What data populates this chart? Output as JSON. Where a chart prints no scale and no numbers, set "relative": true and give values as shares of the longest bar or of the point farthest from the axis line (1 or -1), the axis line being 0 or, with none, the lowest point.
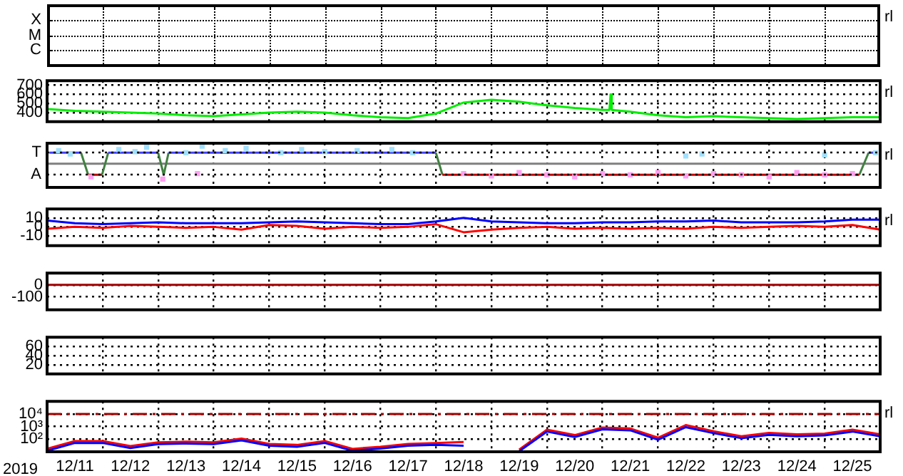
{
  "chart_data": [
    {
      "type": "other",
      "annotations": [
        "rl",
        "X",
        "M",
        "C"
      ]
    },
    {
      "type": "line",
      "tick_labels": "y",
      "grid": true,
      "legend": false,
      "marker": "none",
      "annotations": [
        "rl"
      ],
      "xlim": [
        "2019-12-11",
        "2019-12-26"
      ],
      "xticks": [
        {
          "value": "2019-12-12",
          "label": null
        },
        {
          "value": "2019-12-13",
          "label": null
        },
        {
          "value": "2019-12-14",
          "label": null
        },
        {
          "value": "2019-12-15",
          "label": null
        },
        {
          "value": "2019-12-16",
          "label": null
        },
        {
          "value": "2019-12-17",
          "label": null
        },
        {
          "value": "2019-12-18",
          "label": null
        },
        {
          "value": "2019-12-19",
          "label": null
        },
        {
          "value": "2019-12-20",
          "label": null
        },
        {
          "value": "2019-12-21",
          "label": null
        },
        {
          "value": "2019-12-22",
          "label": null
        },
        {
          "value": "2019-12-23",
          "label": null
        },
        {
          "value": "2019-12-24",
          "label": null
        },
        {
          "value": "2019-12-25",
          "label": null
        }
      ],
      "ylim": [
        300,
        750
      ],
      "yticks": [
        400,
        500,
        600,
        700
      ],
      "x": [
        "2019-12-11",
        "2019-12-11T12:00",
        "2019-12-12",
        "2019-12-12T12:00",
        "2019-12-13",
        "2019-12-13T12:00",
        "2019-12-14",
        "2019-12-14T12:00",
        "2019-12-15",
        "2019-12-15T12:00",
        "2019-12-16",
        "2019-12-16T12:00",
        "2019-12-17",
        "2019-12-17T12:00",
        "2019-12-18",
        "2019-12-18T12:00",
        "2019-12-19",
        "2019-12-19T12:00",
        "2019-12-20",
        "2019-12-20T12:00",
        "2019-12-21",
        "2019-12-21T03:00",
        "2019-12-21T03:30",
        "2019-12-21T04:00",
        "2019-12-21T12:00",
        "2019-12-22",
        "2019-12-22T12:00",
        "2019-12-23",
        "2019-12-23T12:00",
        "2019-12-24",
        "2019-12-24T12:00",
        "2019-12-25",
        "2019-12-25T12:00",
        "2019-12-26"
      ],
      "series": [
        {
          "color": "#00ee00",
          "values": [
            440,
            420,
            410,
            400,
            390,
            370,
            360,
            380,
            400,
            410,
            400,
            370,
            350,
            340,
            390,
            510,
            540,
            520,
            480,
            450,
            430,
            430,
            600,
            430,
            410,
            370,
            350,
            360,
            350,
            340,
            330,
            340,
            350,
            350
          ]
        }
      ]
    },
    {
      "type": "line",
      "tick_labels": false,
      "relative": true,
      "grid": true,
      "legend": false,
      "marker": "none",
      "annotations": [
        "rl",
        "T",
        "A"
      ],
      "xlim": [
        "2019-12-11",
        "2019-12-26"
      ],
      "xticks": [
        {
          "value": "2019-12-12",
          "label": null
        },
        {
          "value": "2019-12-13",
          "label": null
        },
        {
          "value": "2019-12-14",
          "label": null
        },
        {
          "value": "2019-12-15",
          "label": null
        },
        {
          "value": "2019-12-16",
          "label": null
        },
        {
          "value": "2019-12-17",
          "label": null
        },
        {
          "value": "2019-12-18",
          "label": null
        },
        {
          "value": "2019-12-19",
          "label": null
        },
        {
          "value": "2019-12-20",
          "label": null
        },
        {
          "value": "2019-12-21",
          "label": null
        },
        {
          "value": "2019-12-22",
          "label": null
        },
        {
          "value": "2019-12-23",
          "label": null
        },
        {
          "value": "2019-12-24",
          "label": null
        },
        {
          "value": "2019-12-25",
          "label": null
        }
      ],
      "ref_lines": [
        {
          "axis": "y",
          "value": 0,
          "color": "#808080"
        }
      ],
      "series": [
        {
          "type": "scatter",
          "marker": "square",
          "color": "#a0e0ff",
          "x": [
            "2019-12-11T05:00",
            "2019-12-11T10:00",
            "2019-12-12T07:00",
            "2019-12-12T14:00",
            "2019-12-12T19:00",
            "2019-12-13T12:00",
            "2019-12-13T19:00",
            "2019-12-14T05:00",
            "2019-12-14T14:00",
            "2019-12-15T05:00",
            "2019-12-15T14:00",
            "2019-12-16",
            "2019-12-16T14:00",
            "2019-12-17T05:00",
            "2019-12-17T14:00",
            "2019-12-22T12:00",
            "2019-12-22T19:00",
            "2019-12-25",
            "2019-12-25T22:00"
          ],
          "values": [
            0.75,
            0.56,
            0.81,
            0.69,
            0.94,
            0.63,
            1,
            0.75,
            0.88,
            0.63,
            0.81,
            0.69,
            0.75,
            0.81,
            0.63,
            0.44,
            0.56,
            0.5,
            0.63
          ]
        },
        {
          "type": "scatter",
          "marker": "square",
          "color": "#ffa0f0",
          "x": [
            "2019-12-11T19:00",
            "2019-12-13T02:00",
            "2019-12-13T17:00",
            "2019-12-18T12:00",
            "2019-12-19",
            "2019-12-19T12:00",
            "2019-12-20",
            "2019-12-20T12:00",
            "2019-12-21",
            "2019-12-21T12:00",
            "2019-12-22",
            "2019-12-22T12:00",
            "2019-12-23",
            "2019-12-23T12:00",
            "2019-12-24",
            "2019-12-24T12:00",
            "2019-12-25",
            "2019-12-25T12:00"
          ],
          "values": [
            -0.75,
            -0.88,
            -0.56,
            -0.56,
            -0.69,
            -0.5,
            -0.63,
            -0.75,
            -0.56,
            -0.63,
            -0.5,
            -0.69,
            -0.56,
            -0.63,
            -0.75,
            -0.5,
            -0.63,
            -0.56
          ]
        },
        {
          "type": "line",
          "color": "#4040ff",
          "x": [
            "2019-12-11T01:00",
            "2019-12-11T14:40",
            "2019-12-11T20:00",
            "2019-12-12T02:25",
            "2019-12-13",
            "2019-12-13T02:00",
            "2019-12-13T04:30",
            "2019-12-18",
            "2019-12-22",
            "2019-12-25T19:00",
            "2019-12-25T23:00"
          ],
          "values": [
            0.63,
            0.63,
            null,
            0.63,
            0.63,
            null,
            0.63,
            0.63,
            null,
            0.63,
            0.63
          ]
        },
        {
          "type": "line",
          "color": "#c00000",
          "x": [
            "2019-12-11T17:45",
            "2019-12-11T23:45",
            "2019-12-15",
            "2019-12-18T02:50",
            "2019-12-25T15:00"
          ],
          "values": [
            -0.63,
            -0.63,
            null,
            -0.63,
            -0.63
          ]
        },
        {
          "type": "line",
          "color": "#408040",
          "x": [
            "2019-12-11T14:40",
            "2019-12-11T17:45",
            "2019-12-11T20:00",
            "2019-12-11T23:45",
            "2019-12-12T02:25",
            "2019-12-12T12:00",
            "2019-12-13",
            "2019-12-13T02:25",
            "2019-12-13T04:30",
            "2019-12-15",
            "2019-12-18",
            "2019-12-18T02:50",
            "2019-12-22",
            "2019-12-25T15:00",
            "2019-12-25T19:00"
          ],
          "values": [
            0.63,
            -0.63,
            null,
            -0.63,
            0.63,
            null,
            0.63,
            -0.63,
            0.63,
            null,
            0.63,
            -0.63,
            null,
            -0.63,
            0.63
          ]
        }
      ]
    },
    {
      "type": "line",
      "tick_labels": "y",
      "grid": true,
      "legend": false,
      "marker": "none",
      "annotations": [
        "rl"
      ],
      "xlim": [
        "2019-12-11",
        "2019-12-26"
      ],
      "xticks": [
        {
          "value": "2019-12-12",
          "label": null
        },
        {
          "value": "2019-12-13",
          "label": null
        },
        {
          "value": "2019-12-14",
          "label": null
        },
        {
          "value": "2019-12-15",
          "label": null
        },
        {
          "value": "2019-12-16",
          "label": null
        },
        {
          "value": "2019-12-17",
          "label": null
        },
        {
          "value": "2019-12-18",
          "label": null
        },
        {
          "value": "2019-12-19",
          "label": null
        },
        {
          "value": "2019-12-20",
          "label": null
        },
        {
          "value": "2019-12-21",
          "label": null
        },
        {
          "value": "2019-12-22",
          "label": null
        },
        {
          "value": "2019-12-23",
          "label": null
        },
        {
          "value": "2019-12-24",
          "label": null
        },
        {
          "value": "2019-12-25",
          "label": null
        }
      ],
      "ylim": [
        -21,
        20
      ],
      "yticks": [
        10,
        0,
        -10
      ],
      "x": [
        "2019-12-11",
        "2019-12-11T12:00",
        "2019-12-12",
        "2019-12-12T12:00",
        "2019-12-13",
        "2019-12-13T12:00",
        "2019-12-14",
        "2019-12-14T12:00",
        "2019-12-15",
        "2019-12-15T12:00",
        "2019-12-16",
        "2019-12-16T12:00",
        "2019-12-17",
        "2019-12-17T12:00",
        "2019-12-18",
        "2019-12-18T12:00",
        "2019-12-19",
        "2019-12-19T12:00",
        "2019-12-20",
        "2019-12-20T12:00",
        "2019-12-21",
        "2019-12-21T12:00",
        "2019-12-22",
        "2019-12-22T12:00",
        "2019-12-23",
        "2019-12-23T12:00",
        "2019-12-24",
        "2019-12-24T12:00",
        "2019-12-25",
        "2019-12-25T12:00",
        "2019-12-26"
      ],
      "series": [
        {
          "color": "#0000ff",
          "values": [
            7,
            4,
            3,
            4,
            5,
            4,
            4,
            4,
            5,
            6,
            5,
            4,
            3,
            3,
            6,
            10,
            6,
            5,
            4,
            4,
            5,
            5,
            6,
            6,
            7,
            5,
            5,
            5,
            6,
            8,
            8
          ]
        },
        {
          "color": "#ff0000",
          "values": [
            -2,
            0,
            -1,
            1,
            0,
            -1,
            0,
            -3,
            2,
            1,
            -2,
            0,
            -1,
            0,
            3,
            -6,
            -3,
            -1,
            0,
            -2,
            -1,
            -2,
            -1,
            -2,
            0,
            -1,
            0,
            1,
            0,
            2,
            -3
          ]
        }
      ]
    },
    {
      "type": "line",
      "tick_labels": "y",
      "grid": true,
      "legend": false,
      "xlim": [
        "2019-12-11",
        "2019-12-26"
      ],
      "xticks": [
        {
          "value": "2019-12-12",
          "label": null
        },
        {
          "value": "2019-12-13",
          "label": null
        },
        {
          "value": "2019-12-14",
          "label": null
        },
        {
          "value": "2019-12-15",
          "label": null
        },
        {
          "value": "2019-12-16",
          "label": null
        },
        {
          "value": "2019-12-17",
          "label": null
        },
        {
          "value": "2019-12-18",
          "label": null
        },
        {
          "value": "2019-12-19",
          "label": null
        },
        {
          "value": "2019-12-20",
          "label": null
        },
        {
          "value": "2019-12-21",
          "label": null
        },
        {
          "value": "2019-12-22",
          "label": null
        },
        {
          "value": "2019-12-23",
          "label": null
        },
        {
          "value": "2019-12-24",
          "label": null
        },
        {
          "value": "2019-12-25",
          "label": null
        }
      ],
      "ylim": [
        -210,
        100
      ],
      "yticks": [
        0,
        -100
      ],
      "ref_lines": [
        {
          "axis": "y",
          "value": 0,
          "color": "#a00000"
        }
      ]
    },
    {
      "type": "line",
      "tick_labels": "y",
      "grid": true,
      "legend": false,
      "xlim": [
        "2019-12-11",
        "2019-12-26"
      ],
      "xticks": [
        {
          "value": "2019-12-12",
          "label": null
        },
        {
          "value": "2019-12-13",
          "label": null
        },
        {
          "value": "2019-12-14",
          "label": null
        },
        {
          "value": "2019-12-15",
          "label": null
        },
        {
          "value": "2019-12-16",
          "label": null
        },
        {
          "value": "2019-12-17",
          "label": null
        },
        {
          "value": "2019-12-18",
          "label": null
        },
        {
          "value": "2019-12-19",
          "label": null
        },
        {
          "value": "2019-12-20",
          "label": null
        },
        {
          "value": "2019-12-21",
          "label": null
        },
        {
          "value": "2019-12-22",
          "label": null
        },
        {
          "value": "2019-12-23",
          "label": null
        },
        {
          "value": "2019-12-24",
          "label": null
        },
        {
          "value": "2019-12-25",
          "label": null
        }
      ],
      "ylim": [
        0,
        80
      ],
      "yticks": [
        20,
        40,
        60
      ]
    },
    {
      "type": "line",
      "grid": true,
      "legend": false,
      "marker": "none",
      "log": true,
      "xlabel": "2019",
      "annotations": [
        "rl"
      ],
      "xlim": [
        "2019-12-11",
        "2019-12-26"
      ],
      "xticks": [
        {
          "value": "2019-12-11T12:00",
          "label": "12/11"
        },
        {
          "value": "2019-12-12",
          "label": null
        },
        {
          "value": "2019-12-12T12:00",
          "label": "12/12"
        },
        {
          "value": "2019-12-13",
          "label": null
        },
        {
          "value": "2019-12-13T12:00",
          "label": "12/13"
        },
        {
          "value": "2019-12-14",
          "label": null
        },
        {
          "value": "2019-12-14T12:00",
          "label": "12/14"
        },
        {
          "value": "2019-12-15",
          "label": null
        },
        {
          "value": "2019-12-15T12:00",
          "label": "12/15"
        },
        {
          "value": "2019-12-16",
          "label": null
        },
        {
          "value": "2019-12-16T12:00",
          "label": "12/16"
        },
        {
          "value": "2019-12-17",
          "label": null
        },
        {
          "value": "2019-12-17T12:00",
          "label": "12/17"
        },
        {
          "value": "2019-12-18",
          "label": null
        },
        {
          "value": "2019-12-18T12:00",
          "label": "12/18"
        },
        {
          "value": "2019-12-19",
          "label": null
        },
        {
          "value": "2019-12-19T12:00",
          "label": "12/19"
        },
        {
          "value": "2019-12-20",
          "label": null
        },
        {
          "value": "2019-12-20T12:00",
          "label": "12/20"
        },
        {
          "value": "2019-12-21",
          "label": null
        },
        {
          "value": "2019-12-21T12:00",
          "label": "12/21"
        },
        {
          "value": "2019-12-22",
          "label": null
        },
        {
          "value": "2019-12-22T12:00",
          "label": "12/22"
        },
        {
          "value": "2019-12-23",
          "label": null
        },
        {
          "value": "2019-12-23T12:00",
          "label": "12/23"
        },
        {
          "value": "2019-12-24",
          "label": null
        },
        {
          "value": "2019-12-24T12:00",
          "label": "12/24"
        },
        {
          "value": "2019-12-25",
          "label": null
        },
        {
          "value": "2019-12-25T12:00",
          "label": "12/25"
        }
      ],
      "ylim": [
        10,
        100000
      ],
      "yticks": [
        {
          "value": 10000,
          "label": "10⁴"
        },
        {
          "value": 1000,
          "label": "10³"
        },
        {
          "value": 100,
          "label": "10²"
        }
      ],
      "ref_lines": [
        {
          "axis": "y",
          "value": 10000,
          "color": "#a00000",
          "line_style": "dashed"
        }
      ],
      "x": [
        "2019-12-11",
        "2019-12-11T12:00",
        "2019-12-12",
        "2019-12-12T12:00",
        "2019-12-13",
        "2019-12-13T12:00",
        "2019-12-14",
        "2019-12-14T12:00",
        "2019-12-15",
        "2019-12-15T12:00",
        "2019-12-16",
        "2019-12-16T12:00",
        "2019-12-17",
        "2019-12-17T12:00",
        "2019-12-18",
        "2019-12-18T12:00",
        "2019-12-19",
        "2019-12-19T12:00",
        "2019-12-20",
        "2019-12-20T12:00",
        "2019-12-21",
        "2019-12-21T12:00",
        "2019-12-22",
        "2019-12-22T12:00",
        "2019-12-23",
        "2019-12-23T12:00",
        "2019-12-24",
        "2019-12-24T12:00",
        "2019-12-25",
        "2019-12-25T12:00",
        "2019-12-26"
      ],
      "series": [
        {
          "color": "#0000ff",
          "values": [
            12,
            50,
            50,
            20,
            40,
            45,
            40,
            80,
            30,
            25,
            50,
            12,
            18,
            30,
            35,
            30,
            null,
            11,
            400,
            150,
            600,
            500,
            90,
            900,
            300,
            120,
            220,
            170,
            200,
            400,
            170
          ]
        },
        {
          "color": "#ff0000",
          "values": [
            17,
            70,
            70,
            28,
            56,
            63,
            56,
            110,
            42,
            35,
            70,
            17,
            25,
            42,
            49,
            60,
            null,
            15,
            560,
            210,
            840,
            700,
            130,
            1300,
            420,
            170,
            310,
            240,
            280,
            560,
            240
          ]
        }
      ]
    }
  ]
}
